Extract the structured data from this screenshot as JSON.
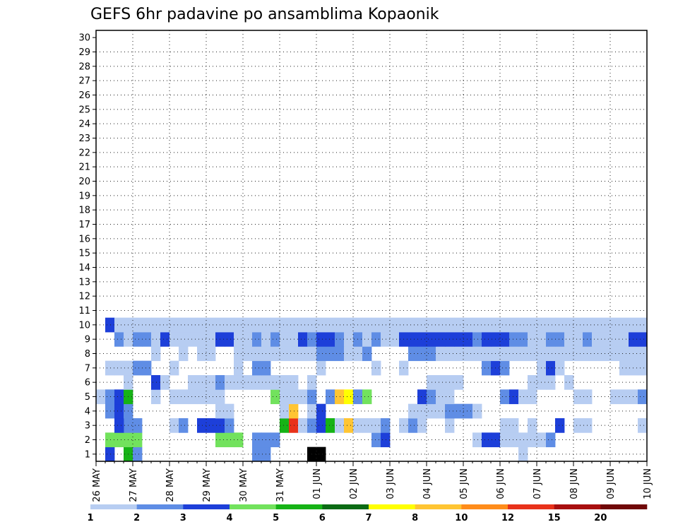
{
  "chart_data": {
    "type": "heatmap",
    "title": "GEFS 6hr padavine po ansamblima Kopaonik",
    "x_tick_labels": [
      "26 MAY",
      "27 MAY",
      "28 MAY",
      "29 MAY",
      "30 MAY",
      "31 MAY",
      "01 JUN",
      "02 JUN",
      "03 JUN",
      "04 JUN",
      "05 JUN",
      "06 JUN",
      "07 JUN",
      "08 JUN",
      "09 JUN",
      "10 JUN"
    ],
    "y_tick_labels": [
      "1",
      "2",
      "3",
      "4",
      "5",
      "6",
      "7",
      "8",
      "9",
      "10",
      "11",
      "12",
      "13",
      "14",
      "15",
      "16",
      "17",
      "18",
      "19",
      "20",
      "21",
      "22",
      "23",
      "24",
      "25",
      "26",
      "27",
      "28",
      "29",
      "30"
    ],
    "x_steps_per_day": 4,
    "x_range_steps": [
      0,
      60
    ],
    "y_range_members": [
      0,
      30
    ],
    "grid": "dotted",
    "legend_placement": "bottom",
    "legend_labels": [
      "1",
      "2",
      "3",
      "4",
      "5",
      "6",
      "7",
      "8",
      "10",
      "12",
      "15",
      "20"
    ],
    "legend_colors": [
      "#b7cdf2",
      "#5f8de5",
      "#1d3fd9",
      "#72e25d",
      "#16b316",
      "#0b6b14",
      "#ffff00",
      "#ffc533",
      "#ff8c1a",
      "#e8321a",
      "#a80f0f",
      "#700808"
    ],
    "cells": [
      [
        1,
        2,
        0
      ],
      [
        3,
        4,
        0
      ],
      [
        4,
        1,
        0
      ],
      [
        17,
        1,
        0
      ],
      [
        18,
        1,
        0
      ],
      [
        23,
        15,
        0
      ],
      [
        24,
        19,
        0
      ],
      [
        46,
        0,
        0
      ],
      [
        1,
        3,
        1
      ],
      [
        2,
        3,
        1
      ],
      [
        3,
        3,
        1
      ],
      [
        4,
        3,
        1
      ],
      [
        3,
        2,
        1
      ],
      [
        4,
        2,
        1
      ],
      [
        13,
        3,
        1
      ],
      [
        14,
        3,
        1
      ],
      [
        15,
        3,
        1
      ],
      [
        17,
        1,
        1
      ],
      [
        18,
        1,
        1
      ],
      [
        19,
        1,
        1
      ],
      [
        30,
        1,
        1
      ],
      [
        31,
        2,
        1
      ],
      [
        41,
        0,
        1
      ],
      [
        42,
        2,
        1
      ],
      [
        43,
        2,
        1
      ],
      [
        44,
        0,
        1
      ],
      [
        45,
        0,
        1
      ],
      [
        46,
        0,
        1
      ],
      [
        47,
        0,
        1
      ],
      [
        48,
        0,
        1
      ],
      [
        49,
        1,
        1
      ],
      [
        3,
        1,
        2
      ],
      [
        4,
        1,
        2
      ],
      [
        2,
        2,
        2
      ],
      [
        8,
        0,
        2
      ],
      [
        9,
        1,
        2
      ],
      [
        11,
        2,
        2
      ],
      [
        12,
        2,
        2
      ],
      [
        13,
        2,
        2
      ],
      [
        13,
        0,
        2
      ],
      [
        14,
        1,
        2
      ],
      [
        20,
        4,
        2
      ],
      [
        21,
        9,
        2
      ],
      [
        22,
        0,
        2
      ],
      [
        23,
        1,
        2
      ],
      [
        24,
        2,
        2
      ],
      [
        25,
        4,
        2
      ],
      [
        26,
        0,
        2
      ],
      [
        27,
        7,
        2
      ],
      [
        28,
        0,
        2
      ],
      [
        29,
        0,
        2
      ],
      [
        30,
        0,
        2
      ],
      [
        31,
        1,
        2
      ],
      [
        33,
        0,
        2
      ],
      [
        34,
        1,
        2
      ],
      [
        35,
        0,
        2
      ],
      [
        38,
        0,
        2
      ],
      [
        44,
        0,
        2
      ],
      [
        45,
        0,
        2
      ],
      [
        47,
        0,
        2
      ],
      [
        50,
        2,
        2
      ],
      [
        52,
        0,
        2
      ],
      [
        53,
        0,
        2
      ],
      [
        59,
        0,
        2
      ],
      [
        59,
        0,
        2
      ],
      [
        1,
        1,
        3
      ],
      [
        2,
        2,
        3
      ],
      [
        2,
        2,
        3
      ],
      [
        3,
        1,
        3
      ],
      [
        13,
        0,
        3
      ],
      [
        14,
        0,
        3
      ],
      [
        14,
        1,
        3
      ],
      [
        20,
        0,
        3
      ],
      [
        21,
        7,
        3
      ],
      [
        23,
        0,
        3
      ],
      [
        24,
        2,
        3
      ],
      [
        34,
        0,
        3
      ],
      [
        35,
        0,
        3
      ],
      [
        36,
        0,
        3
      ],
      [
        37,
        0,
        3
      ],
      [
        38,
        1,
        3
      ],
      [
        39,
        1,
        3
      ],
      [
        40,
        1,
        3
      ],
      [
        41,
        0,
        3
      ],
      [
        0,
        0,
        4
      ],
      [
        1,
        1,
        4
      ],
      [
        2,
        2,
        4
      ],
      [
        3,
        4,
        4
      ],
      [
        6,
        0,
        4
      ],
      [
        8,
        0,
        4
      ],
      [
        9,
        0,
        4
      ],
      [
        10,
        0,
        4
      ],
      [
        11,
        0,
        4
      ],
      [
        12,
        0,
        4
      ],
      [
        13,
        0,
        4
      ],
      [
        19,
        3,
        4
      ],
      [
        20,
        0,
        4
      ],
      [
        21,
        0,
        4
      ],
      [
        22,
        0,
        4
      ],
      [
        23,
        1,
        4
      ],
      [
        25,
        1,
        4
      ],
      [
        26,
        7,
        4
      ],
      [
        27,
        6,
        4
      ],
      [
        28,
        1,
        4
      ],
      [
        29,
        3,
        4
      ],
      [
        35,
        2,
        4
      ],
      [
        36,
        1,
        4
      ],
      [
        37,
        0,
        4
      ],
      [
        38,
        0,
        4
      ],
      [
        44,
        1,
        4
      ],
      [
        45,
        2,
        4
      ],
      [
        46,
        0,
        4
      ],
      [
        47,
        0,
        4
      ],
      [
        52,
        0,
        4
      ],
      [
        53,
        0,
        4
      ],
      [
        56,
        0,
        4
      ],
      [
        57,
        0,
        4
      ],
      [
        58,
        0,
        4
      ],
      [
        59,
        1,
        4
      ],
      [
        3,
        0,
        5
      ],
      [
        6,
        2,
        5
      ],
      [
        7,
        0,
        5
      ],
      [
        10,
        0,
        5
      ],
      [
        11,
        0,
        5
      ],
      [
        12,
        0,
        5
      ],
      [
        13,
        1,
        5
      ],
      [
        14,
        0,
        5
      ],
      [
        15,
        0,
        5
      ],
      [
        16,
        0,
        5
      ],
      [
        17,
        0,
        5
      ],
      [
        18,
        0,
        5
      ],
      [
        19,
        0,
        5
      ],
      [
        20,
        0,
        5
      ],
      [
        21,
        0,
        5
      ],
      [
        23,
        0,
        5
      ],
      [
        36,
        0,
        5
      ],
      [
        37,
        0,
        5
      ],
      [
        38,
        0,
        5
      ],
      [
        39,
        0,
        5
      ],
      [
        47,
        0,
        5
      ],
      [
        48,
        0,
        5
      ],
      [
        49,
        0,
        5
      ],
      [
        51,
        0,
        5
      ],
      [
        1,
        0,
        6
      ],
      [
        2,
        0,
        6
      ],
      [
        3,
        0,
        6
      ],
      [
        4,
        1,
        6
      ],
      [
        5,
        1,
        6
      ],
      [
        8,
        0,
        6
      ],
      [
        15,
        0,
        6
      ],
      [
        17,
        1,
        6
      ],
      [
        18,
        1,
        6
      ],
      [
        24,
        0,
        6
      ],
      [
        30,
        0,
        6
      ],
      [
        33,
        0,
        6
      ],
      [
        42,
        1,
        6
      ],
      [
        43,
        2,
        6
      ],
      [
        44,
        1,
        6
      ],
      [
        48,
        0,
        6
      ],
      [
        49,
        2,
        6
      ],
      [
        50,
        0,
        6
      ],
      [
        57,
        0,
        6
      ],
      [
        58,
        0,
        6
      ],
      [
        59,
        0,
        6
      ],
      [
        6,
        0,
        7
      ],
      [
        9,
        0,
        7
      ],
      [
        11,
        0,
        7
      ],
      [
        12,
        0,
        7
      ],
      [
        15,
        0,
        7
      ],
      [
        16,
        0,
        7
      ],
      [
        17,
        0,
        7
      ],
      [
        18,
        0,
        7
      ],
      [
        19,
        0,
        7
      ],
      [
        20,
        0,
        7
      ],
      [
        21,
        0,
        7
      ],
      [
        22,
        0,
        7
      ],
      [
        23,
        0,
        7
      ],
      [
        24,
        1,
        7
      ],
      [
        25,
        1,
        7
      ],
      [
        26,
        1,
        7
      ],
      [
        27,
        0,
        7
      ],
      [
        28,
        0,
        7
      ],
      [
        29,
        1,
        7
      ],
      [
        34,
        1,
        7
      ],
      [
        35,
        1,
        7
      ],
      [
        36,
        1,
        7
      ],
      [
        37,
        0,
        7
      ],
      [
        38,
        0,
        7
      ],
      [
        39,
        0,
        7
      ],
      [
        40,
        0,
        7
      ],
      [
        41,
        0,
        7
      ],
      [
        42,
        0,
        7
      ],
      [
        43,
        0,
        7
      ],
      [
        44,
        0,
        7
      ],
      [
        45,
        0,
        7
      ],
      [
        46,
        0,
        7
      ],
      [
        47,
        0,
        7
      ],
      [
        48,
        0,
        7
      ],
      [
        49,
        0,
        7
      ],
      [
        50,
        0,
        7
      ],
      [
        51,
        0,
        7
      ],
      [
        52,
        0,
        7
      ],
      [
        53,
        0,
        7
      ],
      [
        54,
        0,
        7
      ],
      [
        55,
        0,
        7
      ],
      [
        56,
        0,
        7
      ],
      [
        57,
        0,
        7
      ],
      [
        58,
        0,
        7
      ],
      [
        59,
        0,
        7
      ],
      [
        2,
        1,
        8
      ],
      [
        3,
        0,
        8
      ],
      [
        4,
        1,
        8
      ],
      [
        5,
        1,
        8
      ],
      [
        6,
        0,
        8
      ],
      [
        7,
        2,
        8
      ],
      [
        8,
        0,
        8
      ],
      [
        9,
        0,
        8
      ],
      [
        10,
        0,
        8
      ],
      [
        11,
        0,
        8
      ],
      [
        12,
        0,
        8
      ],
      [
        13,
        2,
        8
      ],
      [
        14,
        2,
        8
      ],
      [
        15,
        0,
        8
      ],
      [
        16,
        0,
        8
      ],
      [
        17,
        1,
        8
      ],
      [
        18,
        0,
        8
      ],
      [
        19,
        1,
        8
      ],
      [
        20,
        0,
        8
      ],
      [
        21,
        0,
        8
      ],
      [
        22,
        2,
        8
      ],
      [
        23,
        1,
        8
      ],
      [
        24,
        2,
        8
      ],
      [
        25,
        2,
        8
      ],
      [
        26,
        1,
        8
      ],
      [
        27,
        0,
        8
      ],
      [
        28,
        1,
        8
      ],
      [
        29,
        0,
        8
      ],
      [
        30,
        1,
        8
      ],
      [
        31,
        0,
        8
      ],
      [
        32,
        0,
        8
      ],
      [
        33,
        2,
        8
      ],
      [
        34,
        2,
        8
      ],
      [
        35,
        2,
        8
      ],
      [
        36,
        2,
        8
      ],
      [
        37,
        2,
        8
      ],
      [
        38,
        2,
        8
      ],
      [
        39,
        2,
        8
      ],
      [
        40,
        2,
        8
      ],
      [
        41,
        1,
        8
      ],
      [
        42,
        2,
        8
      ],
      [
        43,
        2,
        8
      ],
      [
        44,
        2,
        8
      ],
      [
        45,
        1,
        8
      ],
      [
        46,
        1,
        8
      ],
      [
        47,
        0,
        8
      ],
      [
        48,
        0,
        8
      ],
      [
        49,
        1,
        8
      ],
      [
        50,
        1,
        8
      ],
      [
        51,
        0,
        8
      ],
      [
        52,
        0,
        8
      ],
      [
        53,
        1,
        8
      ],
      [
        54,
        0,
        8
      ],
      [
        55,
        0,
        8
      ],
      [
        56,
        0,
        8
      ],
      [
        57,
        0,
        8
      ],
      [
        58,
        2,
        8
      ],
      [
        59,
        2,
        8
      ],
      [
        1,
        2,
        9
      ],
      [
        2,
        0,
        9
      ],
      [
        3,
        0,
        9
      ],
      [
        4,
        0,
        9
      ],
      [
        5,
        0,
        9
      ],
      [
        6,
        0,
        9
      ],
      [
        7,
        0,
        9
      ],
      [
        8,
        0,
        9
      ],
      [
        9,
        0,
        9
      ],
      [
        10,
        0,
        9
      ],
      [
        11,
        0,
        9
      ],
      [
        12,
        0,
        9
      ],
      [
        13,
        0,
        9
      ],
      [
        14,
        0,
        9
      ],
      [
        15,
        0,
        9
      ],
      [
        16,
        0,
        9
      ],
      [
        17,
        0,
        9
      ],
      [
        18,
        0,
        9
      ],
      [
        19,
        0,
        9
      ],
      [
        20,
        0,
        9
      ],
      [
        21,
        0,
        9
      ],
      [
        22,
        0,
        9
      ],
      [
        23,
        0,
        9
      ],
      [
        24,
        0,
        9
      ],
      [
        25,
        0,
        9
      ],
      [
        26,
        0,
        9
      ],
      [
        27,
        0,
        9
      ],
      [
        28,
        0,
        9
      ],
      [
        29,
        0,
        9
      ],
      [
        30,
        0,
        9
      ],
      [
        31,
        0,
        9
      ],
      [
        32,
        0,
        9
      ],
      [
        33,
        0,
        9
      ],
      [
        34,
        0,
        9
      ],
      [
        35,
        0,
        9
      ],
      [
        36,
        0,
        9
      ],
      [
        37,
        0,
        9
      ],
      [
        38,
        0,
        9
      ],
      [
        39,
        0,
        9
      ],
      [
        40,
        0,
        9
      ],
      [
        41,
        0,
        9
      ],
      [
        42,
        0,
        9
      ],
      [
        43,
        0,
        9
      ],
      [
        44,
        0,
        9
      ],
      [
        45,
        0,
        9
      ],
      [
        46,
        0,
        9
      ],
      [
        47,
        0,
        9
      ],
      [
        48,
        0,
        9
      ],
      [
        49,
        0,
        9
      ],
      [
        50,
        0,
        9
      ],
      [
        51,
        0,
        9
      ],
      [
        52,
        0,
        9
      ],
      [
        53,
        0,
        9
      ],
      [
        54,
        0,
        9
      ],
      [
        55,
        0,
        9
      ],
      [
        56,
        0,
        9
      ],
      [
        57,
        0,
        9
      ],
      [
        58,
        0,
        9
      ],
      [
        59,
        0,
        9
      ]
    ]
  }
}
